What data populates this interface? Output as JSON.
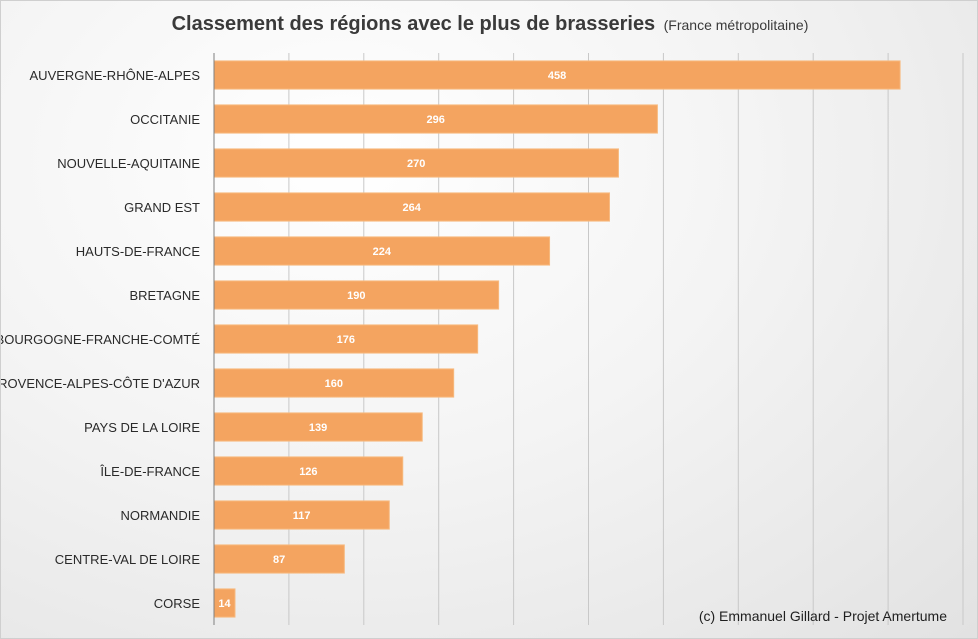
{
  "chart_data": {
    "type": "bar",
    "orientation": "horizontal",
    "title": "Classement des régions avec le plus de brasseries",
    "subtitle": "(France métropolitaine)",
    "categories": [
      "AUVERGNE-RHÔNE-ALPES",
      "OCCITANIE",
      "NOUVELLE-AQUITAINE",
      "GRAND EST",
      "HAUTS-DE-FRANCE",
      "BRETAGNE",
      "BOURGOGNE-FRANCHE-COMTÉ",
      "PROVENCE-ALPES-CÔTE D'AZUR",
      "PAYS DE LA LOIRE",
      "ÎLE-DE-FRANCE",
      "NORMANDIE",
      "CENTRE-VAL DE LOIRE",
      "CORSE"
    ],
    "values": [
      458,
      296,
      270,
      264,
      224,
      190,
      176,
      160,
      139,
      126,
      117,
      87,
      14
    ],
    "xlim": [
      0,
      500
    ],
    "gridlines": true,
    "bar_color": "#F4A460",
    "bar_edge_color": "#F7B97E",
    "data_label_color": "#FFFFFF"
  },
  "credit": "(c) Emmanuel Gillard - Projet Amertume"
}
